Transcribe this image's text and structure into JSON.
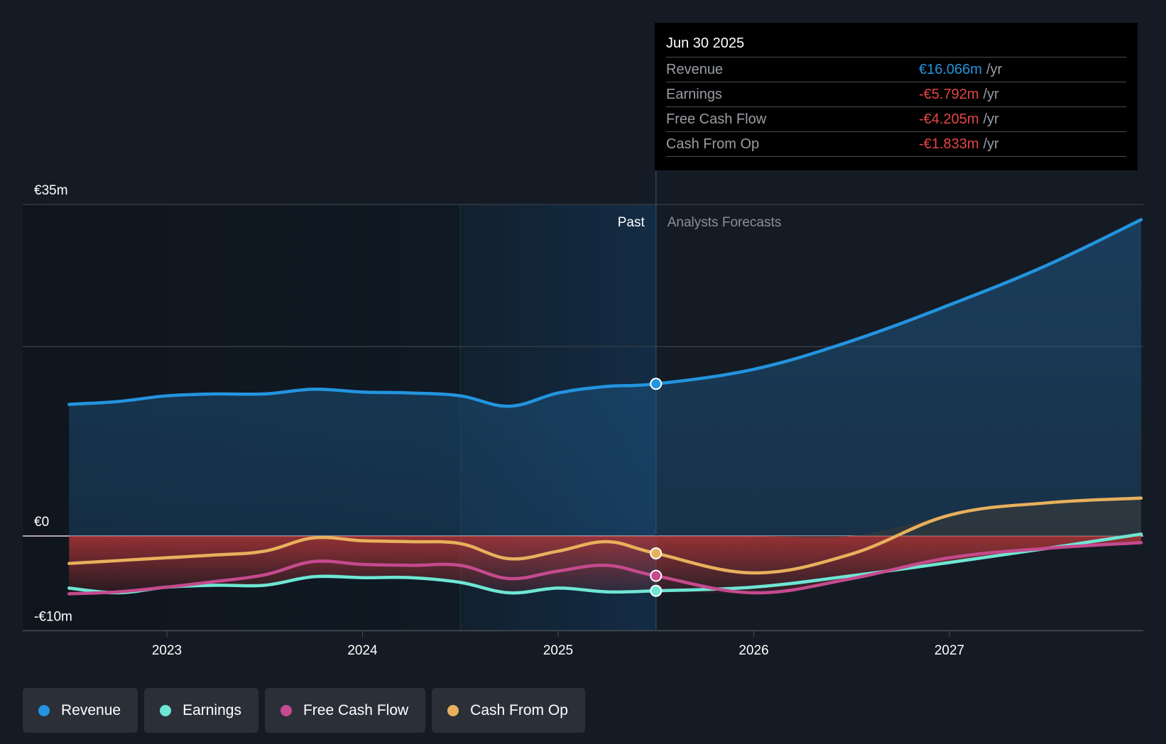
{
  "chart_data": {
    "type": "line",
    "title": "",
    "xlabel": "",
    "ylabel": "",
    "x_ticks": [
      "2023",
      "2024",
      "2025",
      "2026",
      "2027"
    ],
    "x_range": [
      2022.4,
      2028.0
    ],
    "y_ticks": [
      {
        "value": 35,
        "label": "€35m"
      },
      {
        "value": 20,
        "label": ""
      },
      {
        "value": 0,
        "label": "€0"
      },
      {
        "value": -10,
        "label": "-€10m"
      }
    ],
    "ylim": [
      -10,
      35
    ],
    "grid": true,
    "divider_x": 2025.5,
    "highlight_start_x": 2024.5,
    "period_labels": {
      "past": "Past",
      "forecast": "Analysts Forecasts"
    },
    "x": [
      2022.5,
      2022.75,
      2023.0,
      2023.25,
      2023.5,
      2023.75,
      2024.0,
      2024.25,
      2024.5,
      2024.75,
      2025.0,
      2025.25,
      2025.5,
      2026.0,
      2026.5,
      2027.0,
      2027.5,
      2027.98
    ],
    "series": [
      {
        "name": "Revenue",
        "color": "#2394df",
        "values": [
          13.9,
          14.2,
          14.8,
          15.0,
          15.0,
          15.5,
          15.2,
          15.1,
          14.8,
          13.7,
          15.1,
          15.8,
          16.066,
          17.6,
          20.6,
          24.4,
          28.6,
          33.4
        ]
      },
      {
        "name": "Earnings",
        "color": "#6ee6d4",
        "values": [
          -5.5,
          -6.0,
          -5.4,
          -5.2,
          -5.2,
          -4.3,
          -4.4,
          -4.4,
          -4.9,
          -6.0,
          -5.5,
          -5.9,
          -5.792,
          -5.4,
          -4.2,
          -2.8,
          -1.3,
          0.2
        ]
      },
      {
        "name": "Free Cash Flow",
        "color": "#c54a8e",
        "values": [
          -6.1,
          -5.9,
          -5.4,
          -4.8,
          -4.1,
          -2.7,
          -3.0,
          -3.1,
          -3.1,
          -4.5,
          -3.7,
          -3.1,
          -4.205,
          -6.0,
          -4.5,
          -2.3,
          -1.3,
          -0.7
        ]
      },
      {
        "name": "Cash From Op",
        "color": "#e8b05c",
        "values": [
          -2.9,
          -2.6,
          -2.3,
          -2.0,
          -1.6,
          -0.2,
          -0.5,
          -0.6,
          -0.8,
          -2.4,
          -1.6,
          -0.6,
          -1.833,
          -3.9,
          -1.9,
          2.2,
          3.5,
          4.0
        ]
      }
    ]
  },
  "tooltip": {
    "date": "Jun 30 2025",
    "rows": [
      {
        "name": "Revenue",
        "value": "€16.066m",
        "unit": "/yr",
        "color": "#2394df"
      },
      {
        "name": "Earnings",
        "value": "-€5.792m",
        "unit": "/yr",
        "color": "#e64545"
      },
      {
        "name": "Free Cash Flow",
        "value": "-€4.205m",
        "unit": "/yr",
        "color": "#e64545"
      },
      {
        "name": "Cash From Op",
        "value": "-€1.833m",
        "unit": "/yr",
        "color": "#e64545"
      }
    ]
  },
  "legend": [
    {
      "label": "Revenue",
      "color": "#2394df"
    },
    {
      "label": "Earnings",
      "color": "#6ee6d4"
    },
    {
      "label": "Free Cash Flow",
      "color": "#c54a8e"
    },
    {
      "label": "Cash From Op",
      "color": "#e8b05c"
    }
  ]
}
